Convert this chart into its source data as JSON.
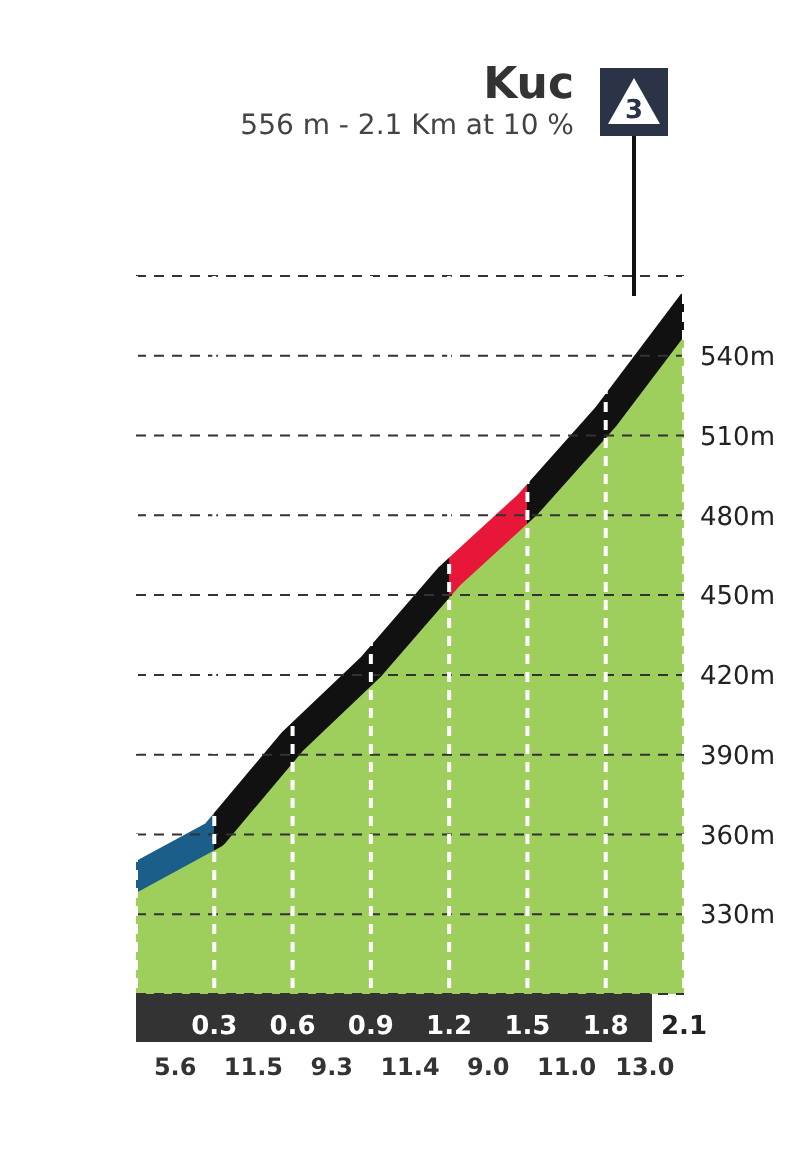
{
  "chart_data": {
    "type": "area",
    "title": "Kuc",
    "subtitle": "556 m - 2.1 Km at 10 %",
    "x": [
      0,
      0.3,
      0.6,
      0.9,
      1.2,
      1.5,
      1.8,
      2.1
    ],
    "series": [
      {
        "color": "#8dc63f",
        "values": [
          344,
          360,
          395,
          423,
          457,
          484,
          517,
          556
        ],
        "colors": [
          "#1b5e8a",
          "#1b5e8a",
          "#111111",
          "#111111",
          "#111111",
          "#e8173a",
          "#111111",
          "#111111"
        ]
      }
    ],
    "xlim": [
      0,
      2.1
    ],
    "xticks": [
      0.3,
      0.6,
      0.9,
      1.2,
      1.5,
      1.8,
      2.1
    ],
    "ylim": [
      300,
      570
    ],
    "yticks": [
      {
        "value": 330,
        "label": "330m"
      },
      {
        "value": 360,
        "label": "360m"
      },
      {
        "value": 390,
        "label": "390m"
      },
      {
        "value": 420,
        "label": "420m"
      },
      {
        "value": 450,
        "label": "450m"
      },
      {
        "value": 480,
        "label": "480m"
      },
      {
        "value": 510,
        "label": "510m"
      },
      {
        "value": 540,
        "label": "540m"
      }
    ],
    "grid": true,
    "annotations": [
      "5.6",
      "11.5",
      "9.3",
      "11.4",
      "9.0",
      "11.0",
      "13.0",
      "3"
    ]
  }
}
